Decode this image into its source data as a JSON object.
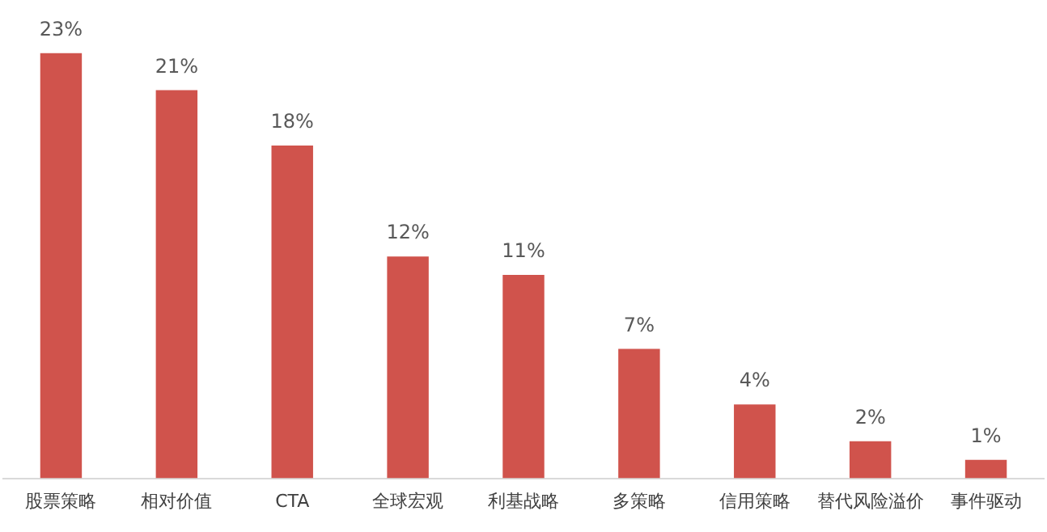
{
  "chart_data": {
    "type": "bar",
    "categories": [
      "股票策略",
      "相对价值",
      "CTA",
      "全球宏观",
      "利基战略",
      "多策略",
      "信用策略",
      "替代风险溢价",
      "事件驱动"
    ],
    "values": [
      23,
      21,
      18,
      12,
      11,
      7,
      4,
      2,
      1
    ],
    "value_labels": [
      "23%",
      "21%",
      "18%",
      "12%",
      "11%",
      "7%",
      "4%",
      "2%",
      "1%"
    ],
    "color": "#d0534c",
    "grid": false,
    "legend": false,
    "tick_labels": "x"
  }
}
